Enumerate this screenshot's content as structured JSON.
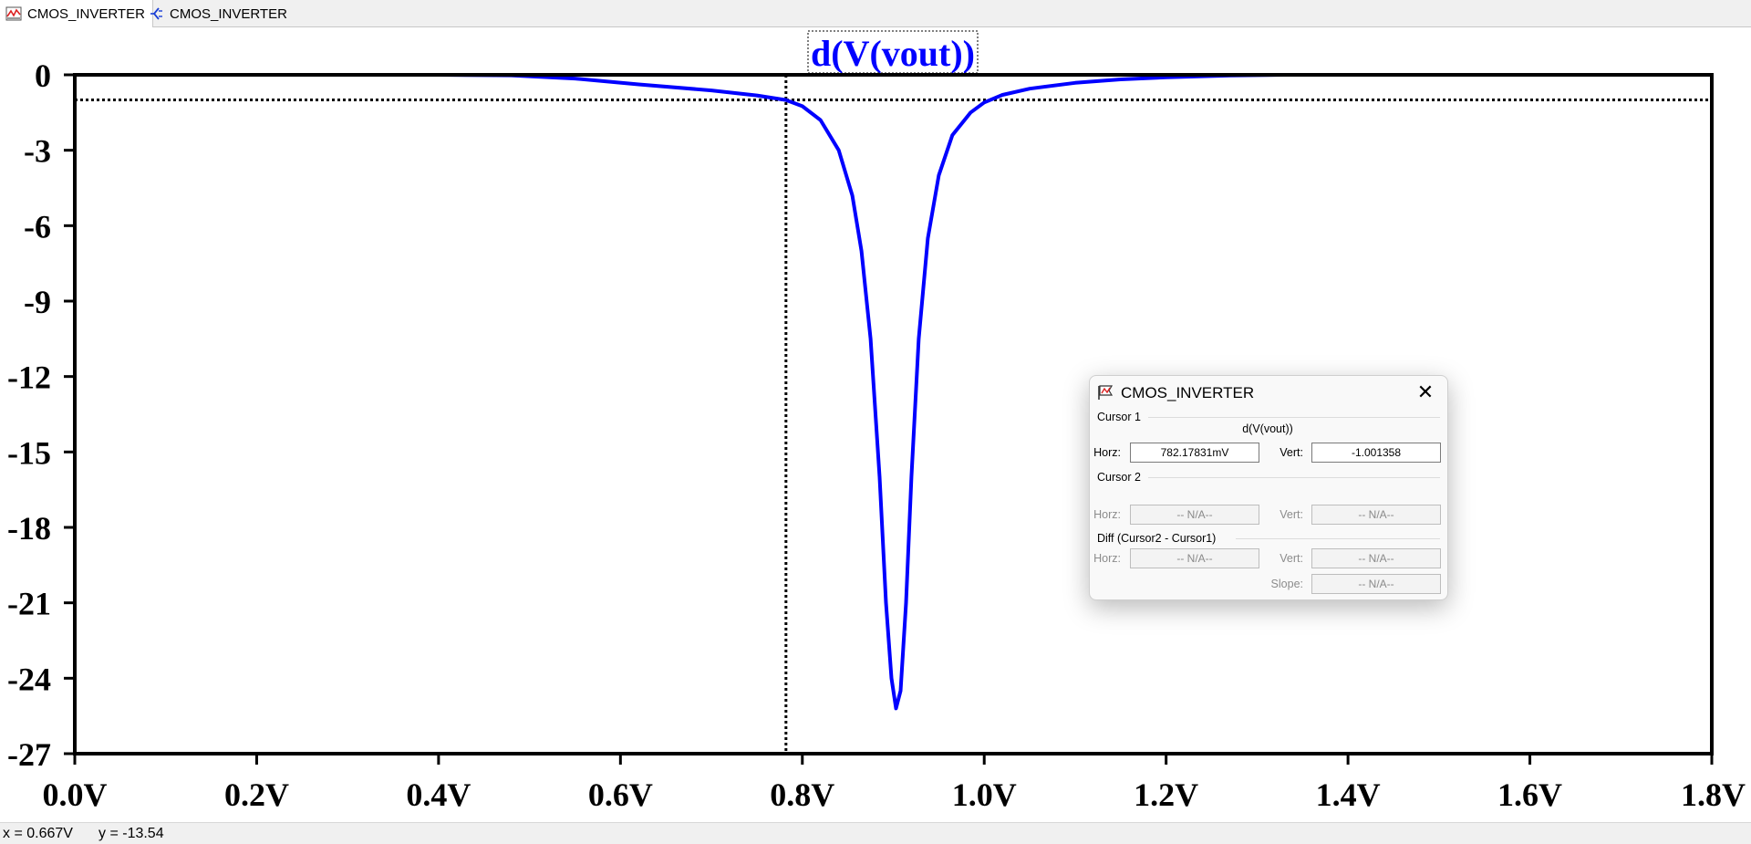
{
  "tabs": [
    {
      "label": "CMOS_INVERTER",
      "icon": "waveform-icon",
      "active": true
    },
    {
      "label": "CMOS_INVERTER",
      "icon": "schematic-icon",
      "active": false
    }
  ],
  "chart_data": {
    "type": "line",
    "title": "d(V(vout))",
    "xlabel": "",
    "ylabel": "",
    "xlim": [
      0.0,
      1.8
    ],
    "ylim": [
      -27,
      0
    ],
    "x_ticks": [
      "0.0V",
      "0.2V",
      "0.4V",
      "0.6V",
      "0.8V",
      "1.0V",
      "1.2V",
      "1.4V",
      "1.6V",
      "1.8V"
    ],
    "y_ticks": [
      "0",
      "-3",
      "-6",
      "-9",
      "-12",
      "-15",
      "-18",
      "-21",
      "-24",
      "-27"
    ],
    "grid": false,
    "series": [
      {
        "name": "d(V(vout))",
        "color": "#0000ff",
        "points": [
          [
            0.0,
            0
          ],
          [
            0.4,
            0
          ],
          [
            0.48,
            -0.02
          ],
          [
            0.55,
            -0.15
          ],
          [
            0.62,
            -0.38
          ],
          [
            0.7,
            -0.62
          ],
          [
            0.75,
            -0.82
          ],
          [
            0.782,
            -1.0
          ],
          [
            0.8,
            -1.25
          ],
          [
            0.82,
            -1.8
          ],
          [
            0.84,
            -3.0
          ],
          [
            0.855,
            -4.8
          ],
          [
            0.865,
            -7.0
          ],
          [
            0.875,
            -10.5
          ],
          [
            0.885,
            -16.0
          ],
          [
            0.892,
            -21.0
          ],
          [
            0.898,
            -24.0
          ],
          [
            0.903,
            -25.2
          ],
          [
            0.908,
            -24.5
          ],
          [
            0.914,
            -21.0
          ],
          [
            0.92,
            -16.0
          ],
          [
            0.928,
            -10.5
          ],
          [
            0.938,
            -6.5
          ],
          [
            0.95,
            -4.0
          ],
          [
            0.965,
            -2.4
          ],
          [
            0.985,
            -1.5
          ],
          [
            1.0,
            -1.1
          ],
          [
            1.02,
            -0.8
          ],
          [
            1.05,
            -0.55
          ],
          [
            1.1,
            -0.32
          ],
          [
            1.15,
            -0.18
          ],
          [
            1.2,
            -0.1
          ],
          [
            1.27,
            -0.03
          ],
          [
            1.33,
            0
          ],
          [
            1.8,
            0
          ]
        ]
      }
    ],
    "cursor": {
      "x": 0.782,
      "y": -1.0,
      "style": "dotted"
    }
  },
  "cursor_dialog": {
    "title": "CMOS_INVERTER",
    "cursor1_label": "Cursor 1",
    "trace": "d(V(vout))",
    "horz_label": "Horz:",
    "vert_label": "Vert:",
    "c1_horz": "782.17831mV",
    "c1_vert": "-1.001358",
    "cursor2_label": "Cursor 2",
    "c2_horz": "-- N/A--",
    "c2_vert": "-- N/A--",
    "diff_label": "Diff (Cursor2 - Cursor1)",
    "diff_horz": "-- N/A--",
    "diff_vert": "-- N/A--",
    "slope_label": "Slope:",
    "diff_slope": "-- N/A--"
  },
  "status": {
    "x": "x = 0.667V",
    "y": "y = -13.54"
  }
}
